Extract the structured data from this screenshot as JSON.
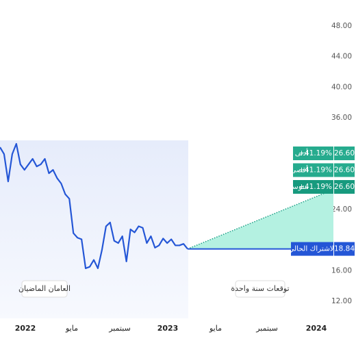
{
  "chart_data": {
    "type": "line",
    "series": [
      {
        "color": "#2456d6",
        "values": [
          32.14,
          31.24,
          27.66,
          31.24,
          32.59,
          29.9,
          29.18,
          29.9,
          30.62,
          29.63,
          29.9,
          30.62,
          28.73,
          29.18,
          28.1,
          27.4,
          26.0,
          25.4,
          20.9,
          20.3,
          20.1,
          16.3,
          16.5,
          17.4,
          16.3,
          18.7,
          21.8,
          22.3,
          19.9,
          19.6,
          20.5,
          17.2,
          21.4,
          21.0,
          21.8,
          21.6,
          19.6,
          20.5,
          19.0,
          19.3,
          20.2,
          19.6,
          20.1,
          19.3,
          19.3,
          19.5,
          18.84
        ]
      }
    ],
    "ylim": [
      10,
      50
    ],
    "yticks": [
      {
        "value": 12,
        "label": "12.00"
      },
      {
        "value": 16,
        "label": "16.00"
      },
      {
        "value": 24,
        "label": "24.00"
      },
      {
        "value": 36,
        "label": "36.00"
      },
      {
        "value": 40,
        "label": "40.00"
      },
      {
        "value": 44,
        "label": "44.00"
      },
      {
        "value": 48,
        "label": "48.00"
      }
    ],
    "xlabels": [
      "2022",
      "مايو",
      "سبتمبر",
      "2023",
      "مايو",
      "سبتمبر",
      "2024"
    ],
    "current": {
      "label": "الاشتراك الحالي",
      "value": 18.84
    },
    "forecasts": [
      {
        "name": "أدنى",
        "change": "+41.19%",
        "value": 26.6,
        "value_label": "26.60"
      },
      {
        "name": "أقصى",
        "change": "+41.19%",
        "value": 26.6,
        "value_label": "26.60"
      },
      {
        "name": "متوسط",
        "change": "+41.19%",
        "value": 26.6,
        "value_label": "26.60"
      }
    ],
    "annotations": [
      "العامان الماضيان",
      "توقعات سنة واحدة"
    ]
  }
}
